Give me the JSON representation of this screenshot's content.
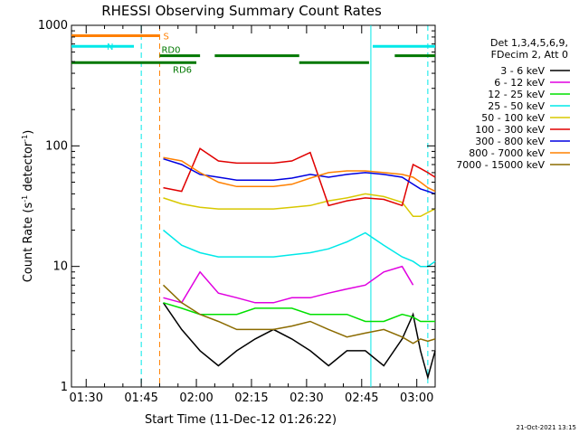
{
  "chart_data": {
    "type": "line",
    "title": "RHESSI Observing Summary Count Rates",
    "xlabel": "Start Time (11-Dec-12 01:26:22)",
    "ylabel": "Count Rate (s",
    "ylabel_sup1": "-1",
    "ylabel_mid": " detector",
    "ylabel_sup2": "-1",
    "ylabel_end": ")",
    "y_scale": "log",
    "ylim": [
      1,
      1000
    ],
    "y_ticks": [
      1,
      10,
      100,
      1000
    ],
    "y_tick_labels": [
      "1",
      "10",
      "100",
      "1000"
    ],
    "x_range_min": [
      86,
      185
    ],
    "x_ticks_min": [
      90,
      105,
      120,
      135,
      150,
      165,
      180
    ],
    "x_tick_labels": [
      "01:30",
      "01:45",
      "02:00",
      "02:15",
      "02:30",
      "02:45",
      "03:00"
    ],
    "legend_header": [
      "Det 1,3,4,5,6,9,",
      "FDecim 2, Att 0"
    ],
    "legend_position": "right",
    "series": [
      {
        "name": "3 - 6 keV",
        "color": "#000000",
        "values": [
          null,
          null,
          null,
          null,
          null,
          5,
          3,
          2,
          1.5,
          2,
          2.5,
          3,
          2.5,
          2,
          1.5,
          2,
          2,
          1.5,
          2.5,
          4,
          2,
          1.2,
          2
        ]
      },
      {
        "name": "6 - 12 keV",
        "color": "#e000e0",
        "values": [
          null,
          null,
          null,
          null,
          null,
          5.5,
          5,
          9,
          6,
          5.5,
          5,
          5,
          5.5,
          5.5,
          6,
          6.5,
          7,
          9,
          10,
          7,
          null,
          null,
          null
        ]
      },
      {
        "name": "12 - 25 keV",
        "color": "#00e000",
        "values": [
          null,
          null,
          null,
          null,
          null,
          5,
          4.5,
          4,
          4,
          4,
          4.5,
          4.5,
          4.5,
          4,
          4,
          4,
          3.5,
          3.5,
          4,
          3.8,
          3.5,
          3.5,
          3.5
        ]
      },
      {
        "name": "25 - 50 keV",
        "color": "#00e8e8",
        "values": [
          null,
          null,
          null,
          null,
          null,
          20,
          15,
          13,
          12,
          12,
          12,
          12,
          12.5,
          13,
          14,
          16,
          19,
          15,
          12,
          11,
          10,
          10,
          11
        ]
      },
      {
        "name": "50 - 100 keV",
        "color": "#d8c800",
        "values": [
          null,
          null,
          null,
          null,
          null,
          37,
          33,
          31,
          30,
          30,
          30,
          30,
          31,
          32,
          35,
          37,
          40,
          38,
          34,
          26,
          26,
          28,
          30
        ]
      },
      {
        "name": "100 - 300 keV",
        "color": "#e00000",
        "values": [
          null,
          null,
          null,
          null,
          null,
          45,
          42,
          95,
          75,
          72,
          72,
          72,
          75,
          88,
          32,
          35,
          37,
          36,
          32,
          70,
          65,
          60,
          55
        ]
      },
      {
        "name": "300 - 800 keV",
        "color": "#0000e0",
        "values": [
          null,
          null,
          null,
          null,
          null,
          78,
          70,
          58,
          55,
          52,
          52,
          52,
          54,
          58,
          55,
          58,
          60,
          58,
          55,
          48,
          44,
          42,
          40
        ]
      },
      {
        "name": "800 - 7000 keV",
        "color": "#ff8000",
        "values": [
          null,
          null,
          null,
          null,
          null,
          80,
          75,
          60,
          50,
          46,
          46,
          46,
          48,
          54,
          60,
          62,
          62,
          60,
          58,
          55,
          50,
          45,
          42
        ]
      },
      {
        "name": "7000 - 15000 keV",
        "color": "#8b6b00",
        "values": [
          null,
          null,
          null,
          null,
          null,
          7,
          5,
          4,
          3.5,
          3,
          3,
          3,
          3.2,
          3.5,
          3,
          2.6,
          2.8,
          3,
          2.6,
          2.3,
          2.5,
          2.4,
          2.5
        ]
      }
    ],
    "x_min": [
      86,
      91,
      96,
      101,
      106,
      111,
      116,
      121,
      126,
      131,
      136,
      141,
      146,
      151,
      156,
      161,
      166,
      171,
      176,
      179,
      181,
      183,
      185
    ],
    "state_bars": [
      {
        "label": "S",
        "color": "#ff8000",
        "level": 820,
        "segments": [
          [
            86,
            110
          ]
        ]
      },
      {
        "label": "N",
        "color": "#00e8e8",
        "level": 670,
        "segments": [
          [
            86,
            103
          ],
          [
            168,
            185
          ]
        ]
      },
      {
        "label": "RD0",
        "color": "#007800",
        "level": 560,
        "segments": [
          [
            110,
            121
          ],
          [
            125,
            148
          ],
          [
            174,
            185
          ]
        ]
      },
      {
        "label": "RD6",
        "color": "#007800",
        "level": 490,
        "segments": [
          [
            86,
            120
          ],
          [
            148,
            167
          ]
        ]
      }
    ],
    "vlines": [
      {
        "x": 105,
        "color": "#00e8e8",
        "style": "dashed"
      },
      {
        "x": 110,
        "color": "#ff8000",
        "style": "dashed"
      },
      {
        "x": 167.5,
        "color": "#00e8e8",
        "style": "solid"
      },
      {
        "x": 183,
        "color": "#00e8e8",
        "style": "dashed"
      }
    ],
    "footer_date": "21-Oct-2021 13:15"
  }
}
